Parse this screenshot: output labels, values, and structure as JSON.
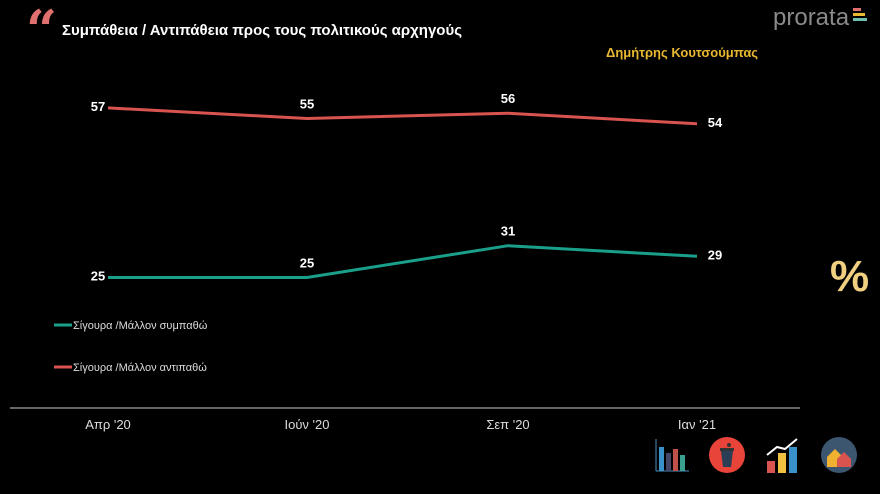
{
  "title": "Συμπάθεια / Αντιπάθεια προς τους πολιτικούς αρχηγούς",
  "logo": "prorata",
  "person": "Δημήτρης Κουτσούμπας",
  "percent_symbol": "%",
  "icons": [
    "bar-chart-icon",
    "podium-icon",
    "growth-chart-icon",
    "houses-icon"
  ],
  "chart_data": {
    "type": "line",
    "categories": [
      "Απρ '20",
      "Ιούν '20",
      "Σεπ '20",
      "Ιαν '21"
    ],
    "series": [
      {
        "name": "Σίγουρα /Μάλλον συμπαθώ",
        "color": "#1aa08a",
        "values": [
          25,
          25,
          31,
          29
        ]
      },
      {
        "name": "Σίγουρα /Μάλλον αντιπαθώ",
        "color": "#d9534f",
        "values": [
          57,
          55,
          56,
          54
        ]
      }
    ],
    "ylim": [
      0,
      70
    ],
    "grid": false,
    "legend": "left"
  }
}
